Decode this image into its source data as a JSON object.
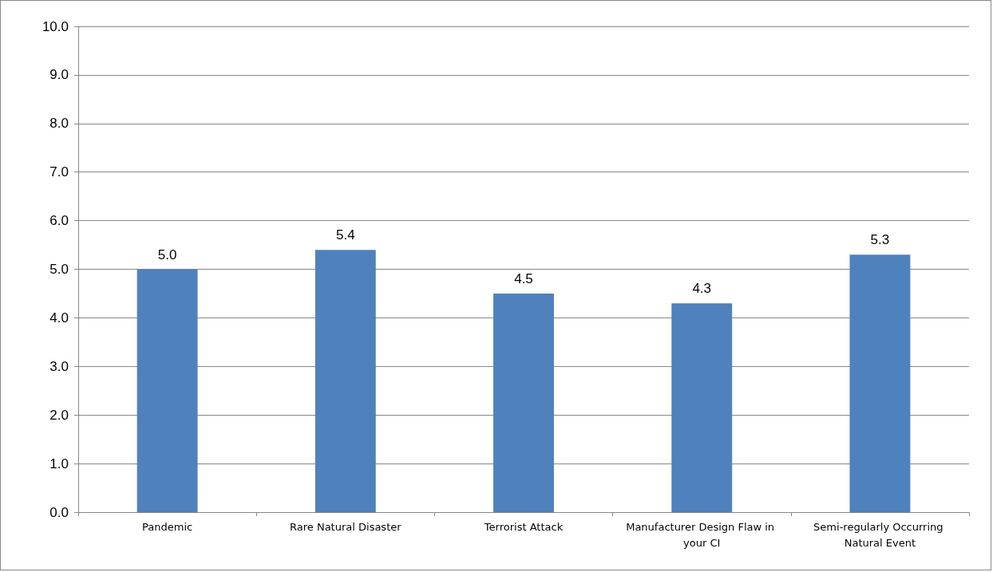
{
  "chart_data": {
    "type": "bar",
    "categories": [
      "Pandemic",
      "Rare Natural Disaster",
      "Terrorist Attack",
      "Manufacturer Design Flaw in your CI",
      "Semi-regularly Occurring Natural Event"
    ],
    "values": [
      5.0,
      5.4,
      4.5,
      4.3,
      5.3
    ],
    "value_labels": [
      "5.0",
      "5.4",
      "4.5",
      "4.3",
      "5.3"
    ],
    "color": "#4f81bd",
    "ylim": [
      0,
      10
    ],
    "yticks": [
      {
        "value": 0,
        "label": "0.0"
      },
      {
        "value": 1,
        "label": "1.0"
      },
      {
        "value": 2,
        "label": "2.0"
      },
      {
        "value": 3,
        "label": "3.0"
      },
      {
        "value": 4,
        "label": "4.0"
      },
      {
        "value": 5,
        "label": "5.0"
      },
      {
        "value": 6,
        "label": "6.0"
      },
      {
        "value": 7,
        "label": "7.0"
      },
      {
        "value": 8,
        "label": "8.0"
      },
      {
        "value": 9,
        "label": "9.0"
      },
      {
        "value": 10,
        "label": "10.0"
      }
    ],
    "grid": "y"
  }
}
